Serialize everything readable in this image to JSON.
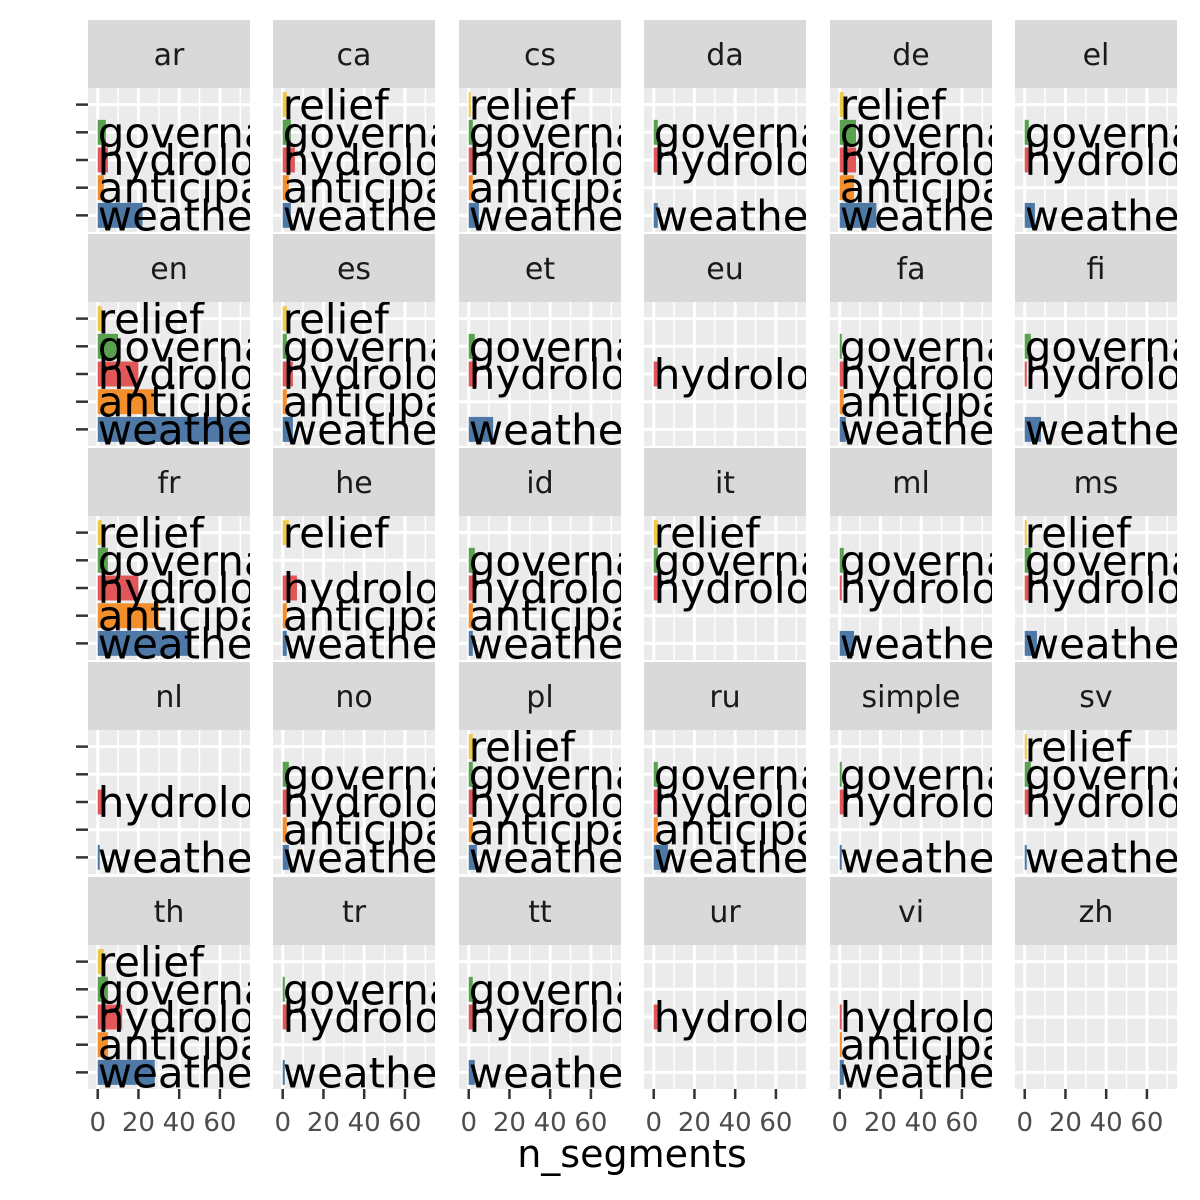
{
  "chart_data": {
    "type": "bar",
    "orientation": "horizontal",
    "facet_rows": 5,
    "facet_cols": 6,
    "xlabel": "n_segments",
    "xlim": [
      0,
      70
    ],
    "x_ticks": [
      0,
      20,
      40,
      60
    ],
    "x_tick_labels": [
      "0",
      "20",
      "40",
      "60"
    ],
    "categories": [
      "weather",
      "anticipation",
      "hydrology",
      "governance",
      "relief"
    ],
    "category_colors": {
      "weather": "#4e79a7",
      "anticipation": "#f28e2b",
      "hydrology": "#e15759",
      "governance": "#59a14f",
      "relief": "#edc948"
    },
    "panel_background": "#ebebeb",
    "strip_background": "#d9d9d9",
    "grid": true,
    "panels": [
      {
        "name": "ar",
        "values": {
          "weather": 22,
          "anticipation": 3,
          "hydrology": 5,
          "governance": 4
        }
      },
      {
        "name": "ca",
        "values": {
          "weather": 4,
          "anticipation": 3,
          "hydrology": 6,
          "governance": 4,
          "relief": 2
        }
      },
      {
        "name": "cs",
        "values": {
          "weather": 5,
          "anticipation": 2,
          "hydrology": 2,
          "governance": 2,
          "relief": 1
        }
      },
      {
        "name": "da",
        "values": {
          "weather": 2,
          "hydrology": 3,
          "governance": 2
        }
      },
      {
        "name": "de",
        "values": {
          "weather": 18,
          "anticipation": 7,
          "hydrology": 8,
          "governance": 8,
          "relief": 2
        }
      },
      {
        "name": "el",
        "values": {
          "weather": 5,
          "hydrology": 2,
          "governance": 2
        }
      },
      {
        "name": "en",
        "values": {
          "weather": 75,
          "anticipation": 28,
          "hydrology": 20,
          "governance": 10,
          "relief": 2
        }
      },
      {
        "name": "es",
        "values": {
          "weather": 5,
          "anticipation": 2,
          "hydrology": 5,
          "governance": 2,
          "relief": 2
        }
      },
      {
        "name": "et",
        "values": {
          "weather": 12,
          "hydrology": 4,
          "governance": 3
        }
      },
      {
        "name": "eu",
        "values": {
          "hydrology": 3
        }
      },
      {
        "name": "fa",
        "values": {
          "weather": 3,
          "anticipation": 2,
          "hydrology": 2,
          "governance": 1
        }
      },
      {
        "name": "fi",
        "values": {
          "weather": 8,
          "hydrology": 1,
          "governance": 3
        }
      },
      {
        "name": "fr",
        "values": {
          "weather": 45,
          "anticipation": 30,
          "hydrology": 20,
          "governance": 5,
          "relief": 2
        }
      },
      {
        "name": "he",
        "values": {
          "weather": 2,
          "anticipation": 2,
          "hydrology": 7,
          "relief": 3
        }
      },
      {
        "name": "id",
        "values": {
          "weather": 2,
          "anticipation": 2,
          "hydrology": 3,
          "governance": 3
        }
      },
      {
        "name": "it",
        "values": {
          "hydrology": 2,
          "governance": 2,
          "relief": 2
        }
      },
      {
        "name": "ml",
        "values": {
          "weather": 7,
          "hydrology": 1,
          "governance": 2
        }
      },
      {
        "name": "ms",
        "values": {
          "weather": 6,
          "hydrology": 2,
          "governance": 3,
          "relief": 1
        }
      },
      {
        "name": "nl",
        "values": {
          "weather": 1,
          "hydrology": 3
        }
      },
      {
        "name": "no",
        "values": {
          "weather": 3,
          "anticipation": 2,
          "hydrology": 3,
          "governance": 3
        }
      },
      {
        "name": "pl",
        "values": {
          "weather": 4,
          "anticipation": 2,
          "hydrology": 3,
          "governance": 2,
          "relief": 2
        }
      },
      {
        "name": "ru",
        "values": {
          "weather": 7,
          "anticipation": 2,
          "hydrology": 3,
          "governance": 2
        }
      },
      {
        "name": "simple",
        "values": {
          "weather": 1,
          "hydrology": 2,
          "governance": 1
        }
      },
      {
        "name": "sv",
        "values": {
          "weather": 1,
          "hydrology": 3,
          "governance": 3,
          "relief": 1
        }
      },
      {
        "name": "th",
        "values": {
          "weather": 28,
          "anticipation": 5,
          "hydrology": 12,
          "governance": 5,
          "relief": 3
        }
      },
      {
        "name": "tr",
        "values": {
          "weather": 1,
          "hydrology": 2,
          "governance": 1
        }
      },
      {
        "name": "tt",
        "values": {
          "weather": 3,
          "hydrology": 2,
          "governance": 2
        }
      },
      {
        "name": "ur",
        "values": {
          "hydrology": 2
        }
      },
      {
        "name": "vi",
        "values": {
          "weather": 2,
          "anticipation": 1,
          "hydrology": 1
        }
      },
      {
        "name": "zh",
        "values": {}
      }
    ]
  }
}
